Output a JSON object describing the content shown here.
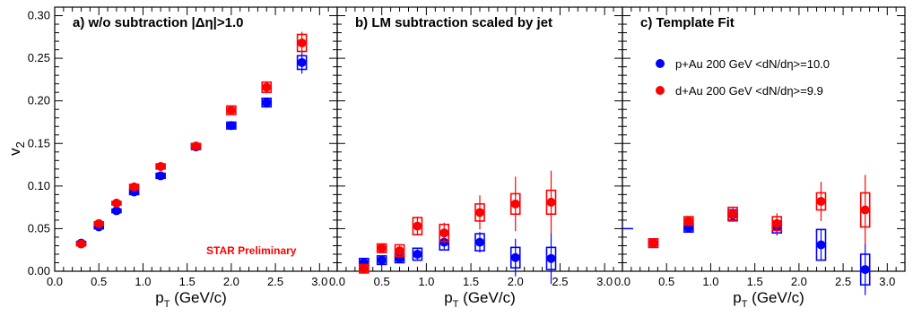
{
  "colors": {
    "pAu": "#0000ff",
    "dAu": "#ff0000",
    "prelim": "#ff0000"
  },
  "figure": {
    "ylabel_main": "v",
    "ylabel_sub": "2",
    "xlabel_main": "p",
    "xlabel_sub": "T",
    "xlabel_unit": " (GeV/c)",
    "prelim_label": "STAR Preliminary",
    "legend": [
      {
        "key": "pAu",
        "label": "p+Au 200 GeV <dN/dη>=10.0"
      },
      {
        "key": "dAu",
        "label": "d+Au 200 GeV <dN/dη>=9.9"
      }
    ]
  },
  "chart_data": [
    {
      "type": "scatter",
      "title": "a) w/o subtraction |Δη|>1.0",
      "xlabel": "pT (GeV/c)",
      "ylabel": "v2",
      "xlim": [
        0,
        3.2
      ],
      "ylim": [
        0,
        0.31
      ],
      "x_ticks": [
        "0.0",
        "0.5",
        "1.0",
        "1.5",
        "2.0",
        "2.5",
        "3.0"
      ],
      "y_ticks": [
        "0.00",
        "0.05",
        "0.10",
        "0.15",
        "0.20",
        "0.25",
        "0.30"
      ],
      "series": [
        {
          "key": "pAu",
          "x": [
            0.3,
            0.5,
            0.7,
            0.9,
            1.2,
            1.6,
            2.0,
            2.4,
            2.8
          ],
          "y": [
            0.033,
            0.052,
            0.071,
            0.093,
            0.112,
            0.146,
            0.171,
            0.198,
            0.245
          ],
          "err": [
            0.002,
            0.002,
            0.002,
            0.002,
            0.002,
            0.003,
            0.004,
            0.006,
            0.013
          ],
          "sys": [
            0.002,
            0.002,
            0.002,
            0.003,
            0.003,
            0.003,
            0.004,
            0.005,
            0.008
          ]
        },
        {
          "key": "dAu",
          "x": [
            0.3,
            0.5,
            0.7,
            0.9,
            1.2,
            1.6,
            2.0,
            2.4,
            2.8
          ],
          "y": [
            0.032,
            0.056,
            0.08,
            0.099,
            0.123,
            0.147,
            0.189,
            0.216,
            0.268
          ],
          "err": [
            0.002,
            0.002,
            0.002,
            0.002,
            0.002,
            0.003,
            0.004,
            0.007,
            0.013
          ],
          "sys": [
            0.002,
            0.002,
            0.002,
            0.003,
            0.003,
            0.003,
            0.005,
            0.006,
            0.01
          ]
        }
      ]
    },
    {
      "type": "scatter",
      "title": "b) LM subtraction scaled by jet",
      "xlabel": "pT (GeV/c)",
      "ylabel": "v2",
      "xlim": [
        0,
        3.2
      ],
      "ylim": [
        0,
        0.31
      ],
      "x_ticks": [
        "0.0",
        "0.5",
        "1.0",
        "1.5",
        "2.0",
        "2.5",
        "3.0"
      ],
      "y_ticks": [
        "0.00",
        "0.05",
        "0.10",
        "0.15",
        "0.20",
        "0.25",
        "0.30"
      ],
      "series": [
        {
          "key": "pAu",
          "x": [
            0.3,
            0.5,
            0.7,
            0.9,
            1.2,
            1.6,
            2.0,
            2.4
          ],
          "y": [
            0.01,
            0.013,
            0.015,
            0.02,
            0.034,
            0.034,
            0.016,
            0.015
          ],
          "err": [
            0.003,
            0.004,
            0.005,
            0.006,
            0.008,
            0.012,
            0.022,
            0.03
          ],
          "sys": [
            0.005,
            0.005,
            0.005,
            0.007,
            0.009,
            0.01,
            0.012,
            0.013
          ]
        },
        {
          "key": "dAu",
          "x": [
            0.3,
            0.5,
            0.7,
            0.9,
            1.2,
            1.6,
            2.0,
            2.4
          ],
          "y": [
            0.003,
            0.027,
            0.024,
            0.053,
            0.045,
            0.069,
            0.079,
            0.081
          ],
          "err": [
            0.003,
            0.005,
            0.006,
            0.011,
            0.012,
            0.02,
            0.032,
            0.037
          ],
          "sys": [
            0.005,
            0.005,
            0.007,
            0.01,
            0.01,
            0.01,
            0.012,
            0.014
          ]
        }
      ]
    },
    {
      "type": "scatter",
      "title": "c) Template Fit",
      "xlabel": "pT (GeV/c)",
      "ylabel": "v2",
      "xlim": [
        0,
        3.2
      ],
      "ylim": [
        0,
        0.31
      ],
      "x_ticks": [
        "0.0",
        "0.5",
        "1.0",
        "1.5",
        "2.0",
        "2.5",
        "3.0"
      ],
      "y_ticks": [
        "0.00",
        "0.05",
        "0.10",
        "0.15",
        "0.20",
        "0.25",
        "0.30"
      ],
      "legend_position": "top-right",
      "series": [
        {
          "key": "pAu",
          "x": [
            0.35,
            0.75,
            1.25,
            1.75,
            2.25,
            2.75
          ],
          "y": [
            0.033,
            0.051,
            0.066,
            0.052,
            0.031,
            0.002
          ],
          "err": [
            0.004,
            0.005,
            0.007,
            0.01,
            0.018,
            0.03
          ],
          "sys": [
            0.005,
            0.005,
            0.006,
            0.007,
            0.018,
            0.018
          ]
        },
        {
          "key": "dAu",
          "x": [
            0.35,
            0.75,
            1.25,
            1.75,
            2.25,
            2.75
          ],
          "y": [
            0.033,
            0.059,
            0.067,
            0.056,
            0.082,
            0.072
          ],
          "err": [
            0.004,
            0.005,
            0.008,
            0.012,
            0.023,
            0.041
          ],
          "sys": [
            0.005,
            0.005,
            0.008,
            0.008,
            0.01,
            0.02
          ]
        }
      ]
    }
  ]
}
